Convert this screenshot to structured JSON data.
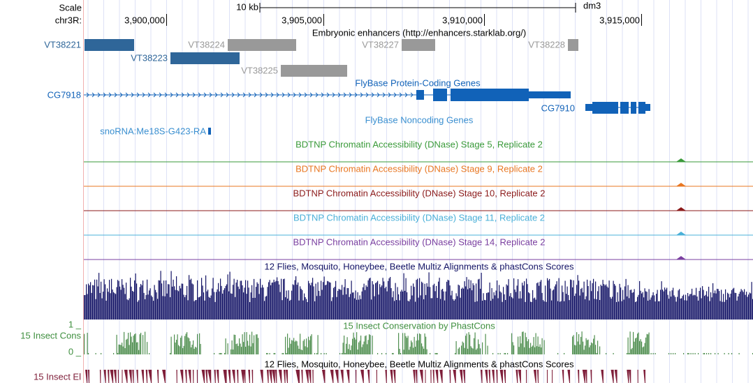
{
  "header": {
    "scale_label": "Scale",
    "chrom": "chr3R:",
    "scale_bar": "10 kb",
    "assembly": "dm3",
    "positions": [
      "3,900,000",
      "3,905,000",
      "3,910,000",
      "3,915,000"
    ]
  },
  "tracks": [
    {
      "title": "Embryonic enhancers (http://enhancers.starklab.org/)",
      "features": [
        "VT38221",
        "VT38224",
        "VT38227",
        "VT38228",
        "VT38223",
        "VT38225"
      ]
    },
    {
      "title": "FlyBase Protein-Coding Genes",
      "features": [
        "CG7918",
        "CG7910"
      ]
    },
    {
      "title": "FlyBase Noncoding Genes",
      "features": [
        "snoRNA:Me18S-G423-RA"
      ]
    },
    {
      "title": "BDTNP Chromatin Accessibility (DNase) Stage 5, Replicate 2"
    },
    {
      "title": "BDTNP Chromatin Accessibility (DNase) Stage 9, Replicate 2"
    },
    {
      "title": "BDTNP Chromatin Accessibility (DNase) Stage 10, Replicate 2"
    },
    {
      "title": "BDTNP Chromatin Accessibility (DNase) Stage 11, Replicate 2"
    },
    {
      "title": "BDTNP Chromatin Accessibility (DNase) Stage 14, Replicate 2"
    },
    {
      "title": "12 Flies, Mosquito, Honeybee, Beetle Multiz Alignments & phastCons Scores"
    },
    {
      "title": "15 Insect Conservation by PhastCons",
      "side_label": "15 Insect Cons",
      "scale_max": "1 _",
      "scale_min": "0 _"
    },
    {
      "title": "12 Flies, Mosquito, Honeybee, Beetle Multiz Alignments & phastCons Scores",
      "side_label": "15 Insect El"
    }
  ]
}
